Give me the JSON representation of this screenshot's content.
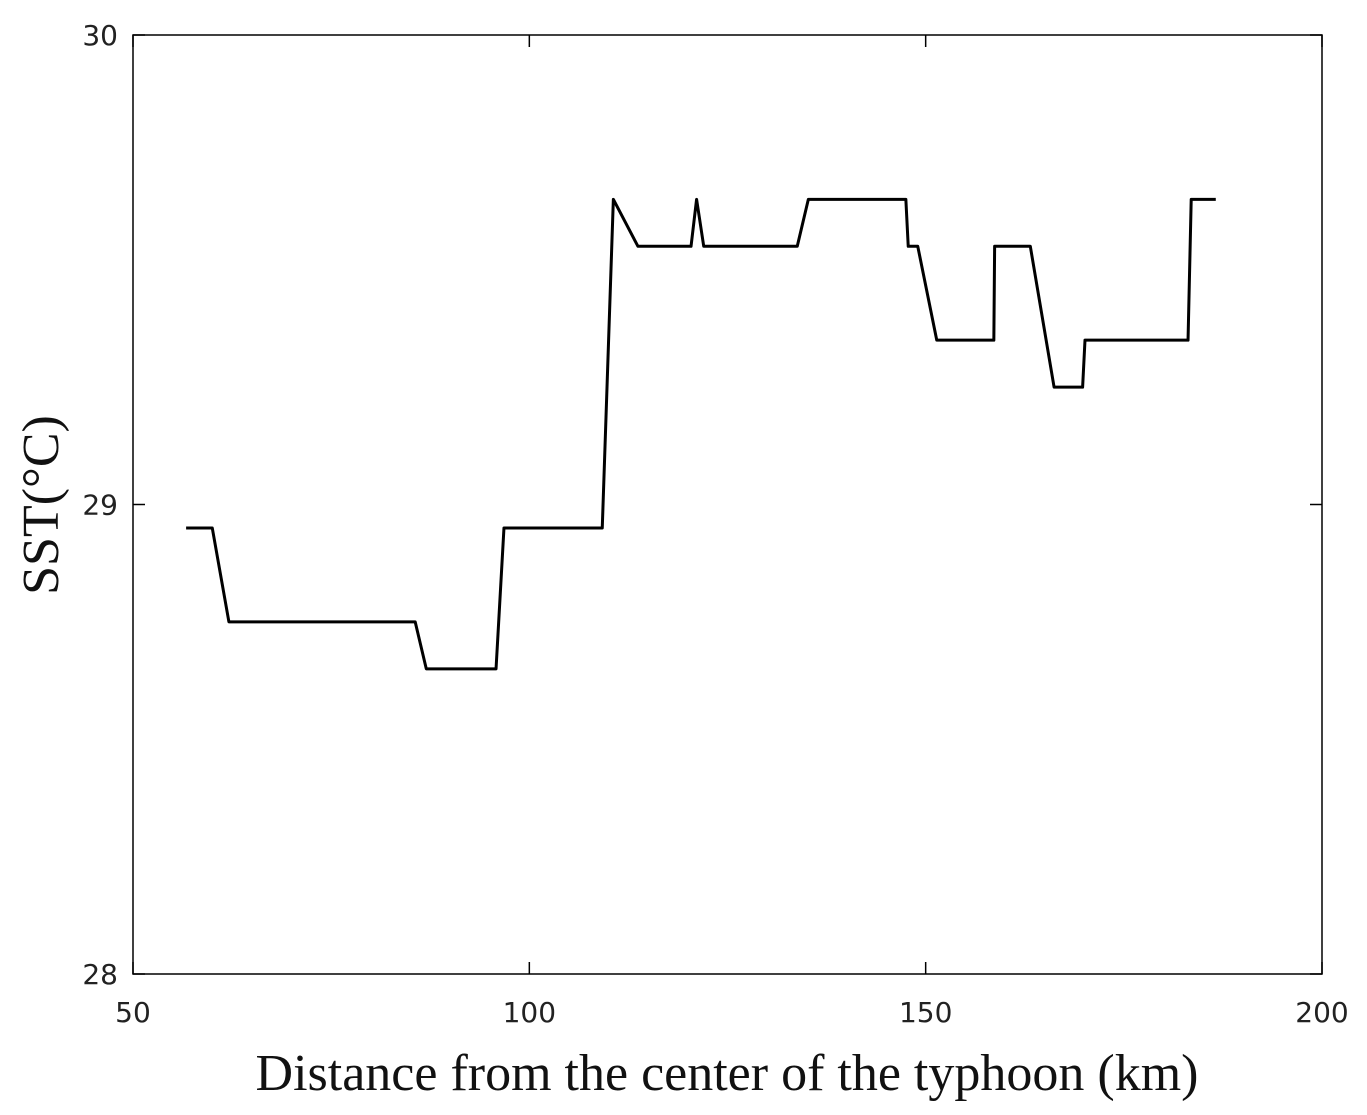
{
  "chart_data": {
    "type": "line",
    "x_label": "Distance from the center of the typhoon (km)",
    "y_label": "SST(°C)",
    "x": [
      56.7,
      60.0,
      62.1,
      85.6,
      87.0,
      95.8,
      96.8,
      109.2,
      110.6,
      113.7,
      120.4,
      121.1,
      122.0,
      133.8,
      135.2,
      147.5,
      147.8,
      149.0,
      151.4,
      158.6,
      158.7,
      163.2,
      166.2,
      169.8,
      170.1,
      183.1,
      183.5,
      186.6
    ],
    "series": [
      {
        "color": "#000000",
        "values": [
          28.95,
          28.95,
          28.75,
          28.75,
          28.65,
          28.65,
          28.95,
          28.95,
          29.65,
          29.55,
          29.55,
          29.65,
          29.55,
          29.55,
          29.65,
          29.65,
          29.55,
          29.55,
          29.35,
          29.35,
          29.55,
          29.55,
          29.25,
          29.25,
          29.35,
          29.35,
          29.65,
          29.65
        ]
      }
    ],
    "xlim": [
      50,
      200
    ],
    "xticks": [
      50,
      100,
      150,
      200
    ],
    "ylim": [
      28,
      30
    ],
    "yticks": [
      28,
      29,
      30
    ]
  }
}
